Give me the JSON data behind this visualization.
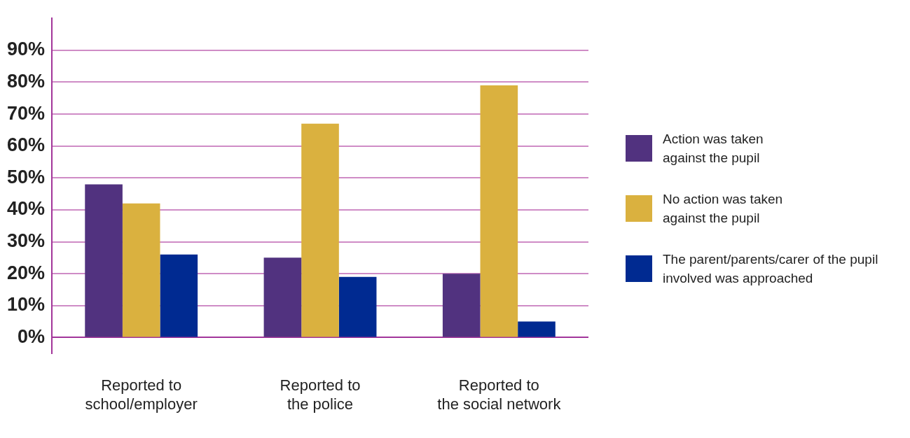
{
  "chart_data": {
    "type": "bar",
    "categories": [
      "Reported to\nschool/employer",
      "Reported to\nthe police",
      "Reported to\nthe social network"
    ],
    "series": [
      {
        "name": "Action was taken\nagainst the pupil",
        "color": "#51327f",
        "values": [
          48,
          25,
          20
        ]
      },
      {
        "name": "No action was taken\nagainst the pupil",
        "color": "#dab13f",
        "values": [
          42,
          67,
          79
        ]
      },
      {
        "name": "The parent/parents/carer of the pupil\ninvolved was approached",
        "color": "#002a91",
        "values": [
          26,
          19,
          5
        ]
      }
    ],
    "ylim": [
      -5,
      100
    ],
    "yticks": [
      {
        "value": 0,
        "label": "0%"
      },
      {
        "value": 10,
        "label": "10%"
      },
      {
        "value": 20,
        "label": "20%"
      },
      {
        "value": 30,
        "label": "30%"
      },
      {
        "value": 40,
        "label": "40%"
      },
      {
        "value": 50,
        "label": "50%"
      },
      {
        "value": 60,
        "label": "60%"
      },
      {
        "value": 70,
        "label": "70%"
      },
      {
        "value": 80,
        "label": "80%"
      },
      {
        "value": 90,
        "label": "90%"
      }
    ],
    "grid": "y",
    "legend": "right"
  }
}
